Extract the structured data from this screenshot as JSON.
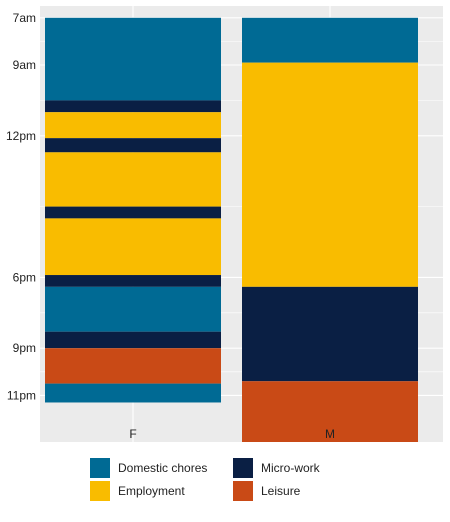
{
  "chart_data": {
    "type": "bar",
    "stacked": true,
    "orientation": "vertical",
    "y_axis": {
      "reversed": true,
      "unit": "hour of day",
      "range": [
        6.5,
        24
      ],
      "ticks": [
        {
          "value": 7,
          "label": "7am"
        },
        {
          "value": 9,
          "label": "9am"
        },
        {
          "value": 12,
          "label": "12pm"
        },
        {
          "value": 18,
          "label": "6pm"
        },
        {
          "value": 21,
          "label": "9pm"
        },
        {
          "value": 23,
          "label": "11pm"
        }
      ]
    },
    "categories": [
      "F",
      "M"
    ],
    "series": [
      {
        "name": "Domestic chores",
        "color": "#006a94"
      },
      {
        "name": "Micro-work",
        "color": "#0a1f44"
      },
      {
        "name": "Employment",
        "color": "#f9bc00"
      },
      {
        "name": "Leisure",
        "color": "#c94a16"
      }
    ],
    "segments": {
      "F": [
        {
          "series": "Domestic chores",
          "start": 7.0,
          "end": 10.5
        },
        {
          "series": "Micro-work",
          "start": 10.5,
          "end": 11.0
        },
        {
          "series": "Employment",
          "start": 11.0,
          "end": 12.1
        },
        {
          "series": "Micro-work",
          "start": 12.1,
          "end": 12.7
        },
        {
          "series": "Employment",
          "start": 12.7,
          "end": 15.0
        },
        {
          "series": "Micro-work",
          "start": 15.0,
          "end": 15.5
        },
        {
          "series": "Employment",
          "start": 15.5,
          "end": 17.9
        },
        {
          "series": "Micro-work",
          "start": 17.9,
          "end": 18.4
        },
        {
          "series": "Domestic chores",
          "start": 18.4,
          "end": 20.3
        },
        {
          "series": "Micro-work",
          "start": 20.3,
          "end": 21.0
        },
        {
          "series": "Leisure",
          "start": 21.0,
          "end": 22.5
        },
        {
          "series": "Domestic chores",
          "start": 22.5,
          "end": 23.3
        }
      ],
      "M": [
        {
          "series": "Domestic chores",
          "start": 7.0,
          "end": 8.9
        },
        {
          "series": "Employment",
          "start": 8.9,
          "end": 18.4
        },
        {
          "series": "Micro-work",
          "start": 18.4,
          "end": 22.4
        },
        {
          "series": "Leisure",
          "start": 22.4,
          "end": 25.1
        }
      ]
    },
    "grid": true,
    "legend_position": "bottom",
    "title": "",
    "xlabel": "",
    "ylabel": ""
  },
  "colors": {
    "panel_background": "#ebebeb",
    "gridline": "#ffffff",
    "axis_text": "#222222"
  }
}
